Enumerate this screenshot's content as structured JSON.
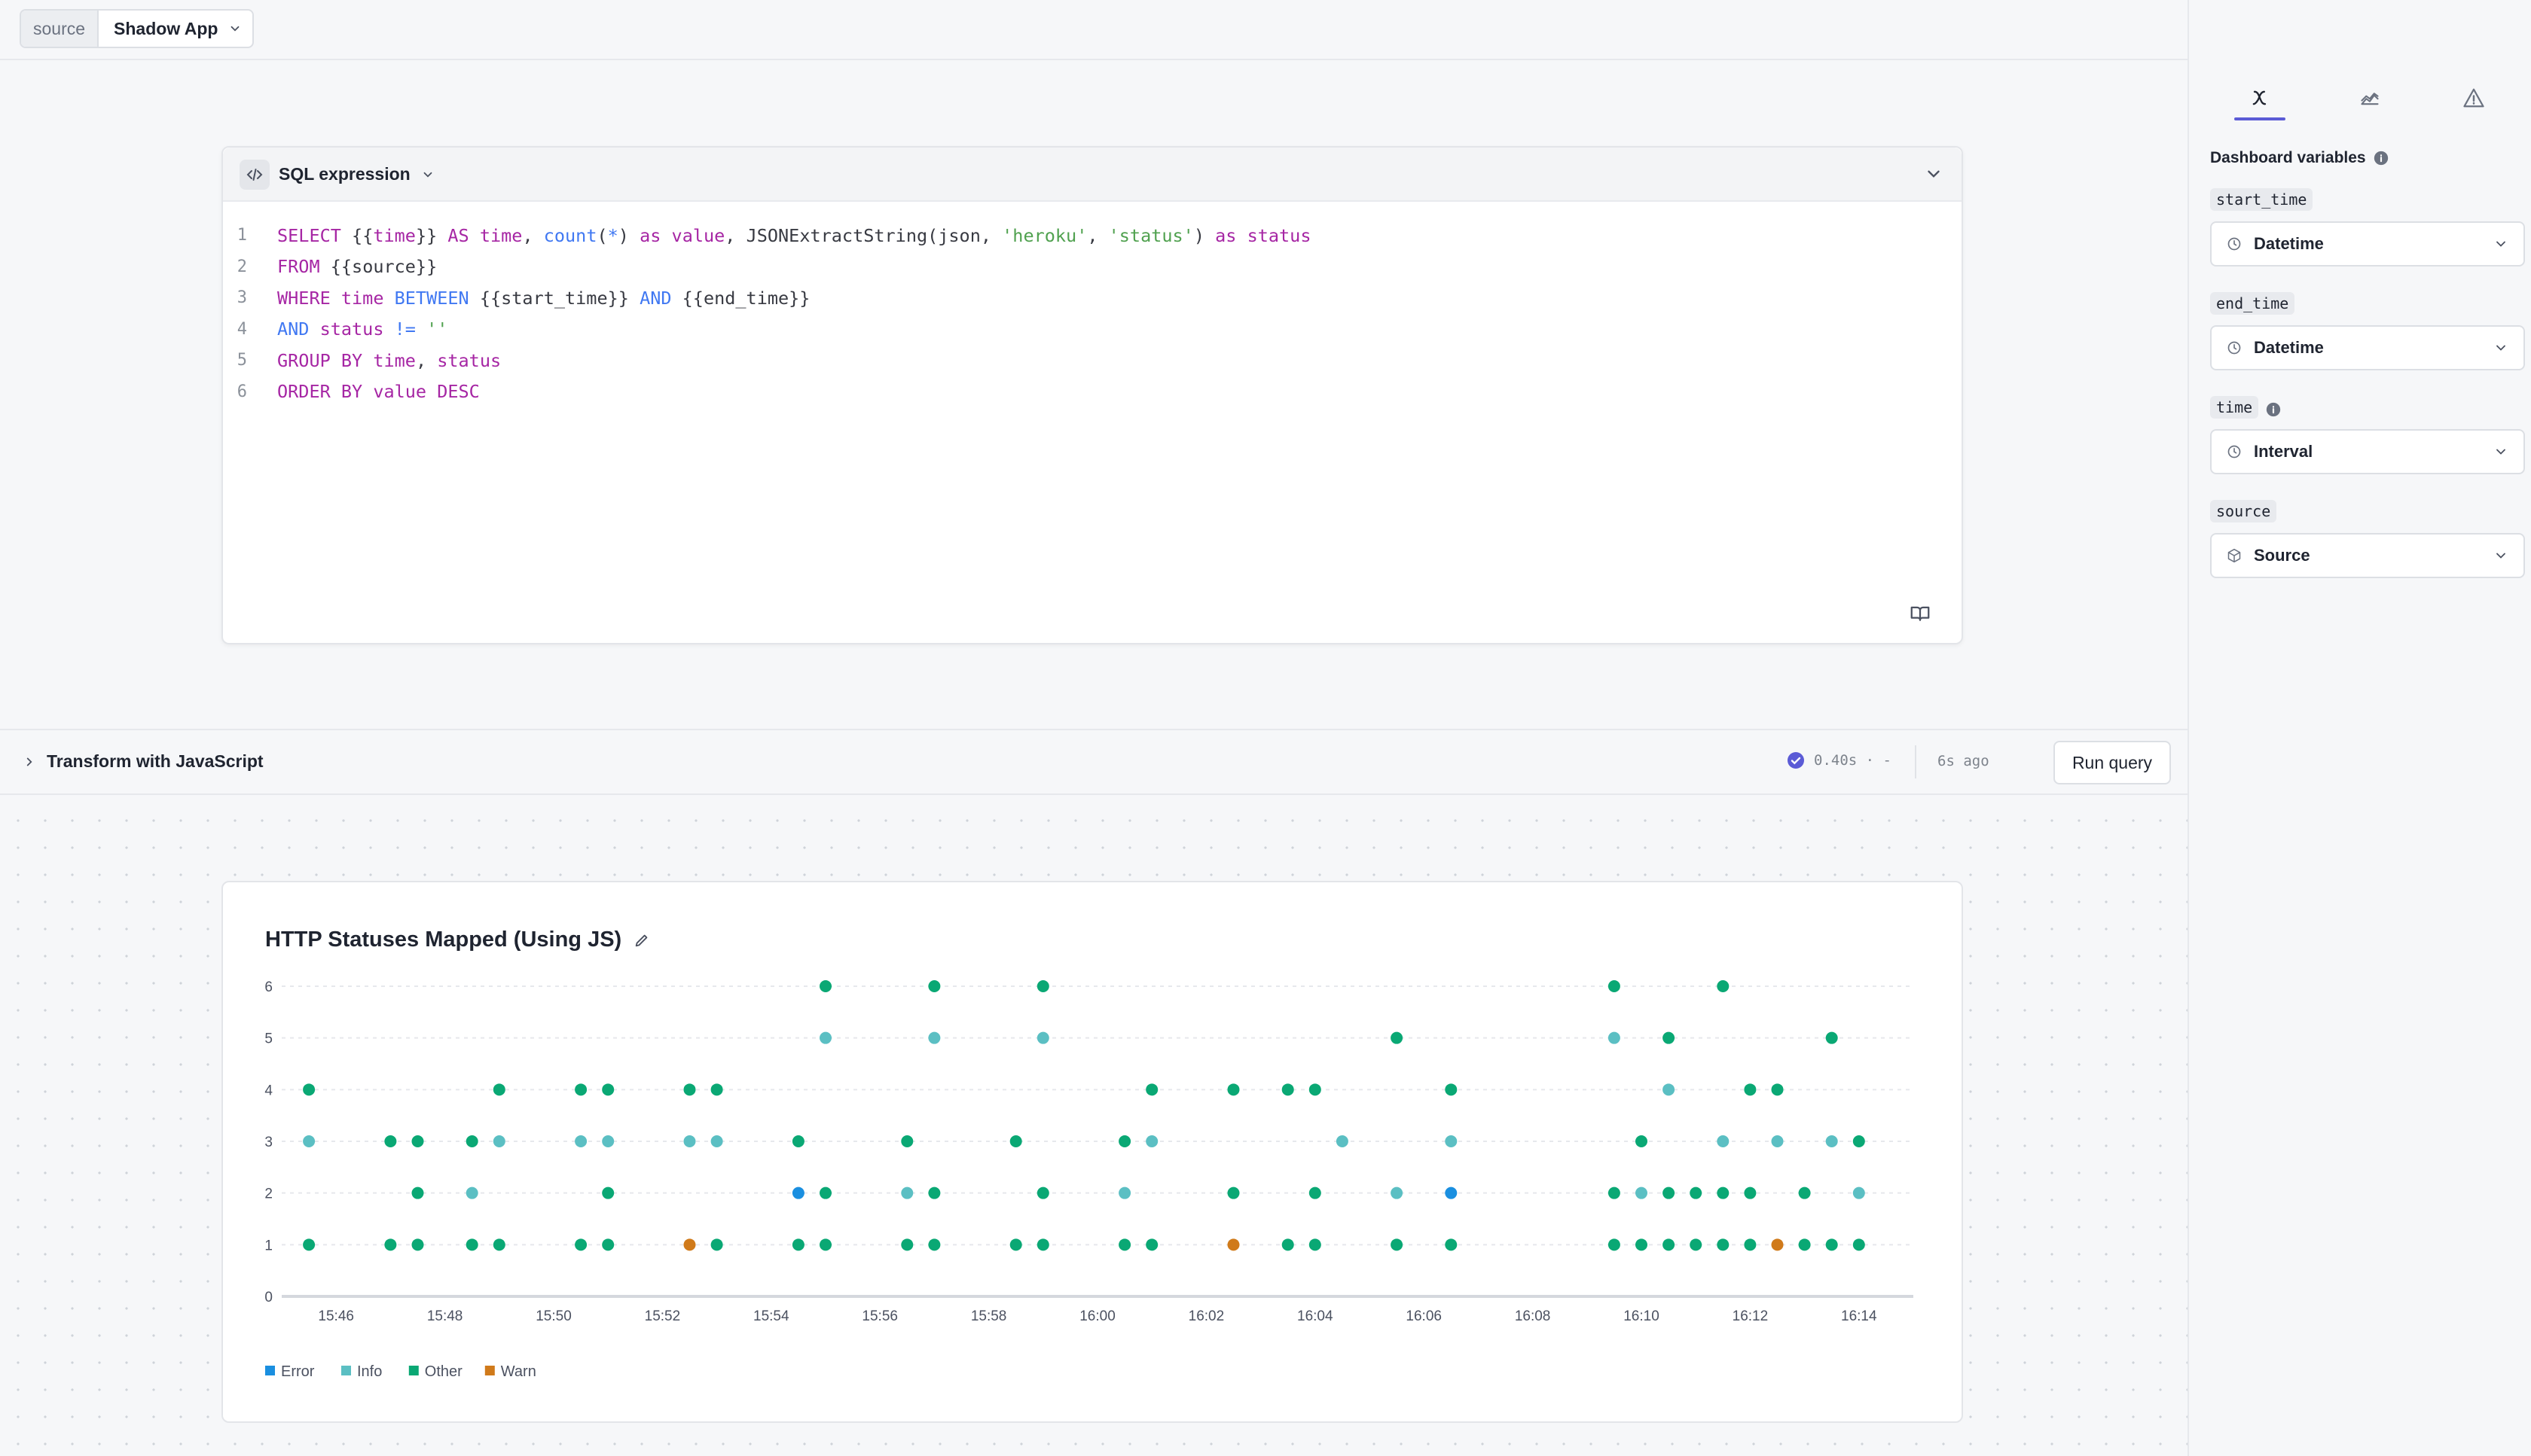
{
  "topbar": {
    "source_label": "source",
    "source_value": "Shadow App"
  },
  "sql": {
    "title": "SQL expression",
    "lines": [
      [
        {
          "t": "SELECT ",
          "c": "kw"
        },
        {
          "t": "{{",
          "c": "pl"
        },
        {
          "t": "time",
          "c": "kw"
        },
        {
          "t": "}} ",
          "c": "pl"
        },
        {
          "t": "AS ",
          "c": "kw"
        },
        {
          "t": "time",
          "c": "kw"
        },
        {
          "t": ", ",
          "c": "pl"
        },
        {
          "t": "count",
          "c": "fn"
        },
        {
          "t": "(",
          "c": "pl"
        },
        {
          "t": "*",
          "c": "fn"
        },
        {
          "t": ") ",
          "c": "pl"
        },
        {
          "t": "as ",
          "c": "kw"
        },
        {
          "t": "value",
          "c": "kw"
        },
        {
          "t": ", JSONExtractString(json, ",
          "c": "pl"
        },
        {
          "t": "'heroku'",
          "c": "str"
        },
        {
          "t": ", ",
          "c": "pl"
        },
        {
          "t": "'status'",
          "c": "str"
        },
        {
          "t": ") ",
          "c": "pl"
        },
        {
          "t": "as ",
          "c": "kw"
        },
        {
          "t": "status",
          "c": "kw"
        }
      ],
      [
        {
          "t": "FROM ",
          "c": "kw"
        },
        {
          "t": "{{source}}",
          "c": "pl"
        }
      ],
      [
        {
          "t": "WHERE ",
          "c": "kw"
        },
        {
          "t": "time ",
          "c": "kw"
        },
        {
          "t": "BETWEEN ",
          "c": "fn"
        },
        {
          "t": "{{start_time}} ",
          "c": "pl"
        },
        {
          "t": "AND ",
          "c": "fn"
        },
        {
          "t": "{{end_time}}",
          "c": "pl"
        }
      ],
      [
        {
          "t": "AND ",
          "c": "fn"
        },
        {
          "t": "status ",
          "c": "kw"
        },
        {
          "t": "!= ",
          "c": "fn"
        },
        {
          "t": "''",
          "c": "str"
        }
      ],
      [
        {
          "t": "GROUP BY ",
          "c": "kw"
        },
        {
          "t": "time",
          "c": "kw"
        },
        {
          "t": ", ",
          "c": "pl"
        },
        {
          "t": "status",
          "c": "kw"
        }
      ],
      [
        {
          "t": "ORDER BY ",
          "c": "kw"
        },
        {
          "t": "value ",
          "c": "kw"
        },
        {
          "t": "DESC",
          "c": "kw"
        }
      ]
    ]
  },
  "transform": {
    "label": "Transform with JavaScript"
  },
  "status": {
    "duration": "0.40s · -",
    "ago": "6s ago",
    "run_label": "Run query"
  },
  "right_panel": {
    "title": "Dashboard variables",
    "variables": [
      {
        "name": "start_time",
        "type": "Datetime",
        "icon": "clock-icon",
        "info": false
      },
      {
        "name": "end_time",
        "type": "Datetime",
        "icon": "clock-icon",
        "info": false
      },
      {
        "name": "time",
        "type": "Interval",
        "icon": "clock-icon",
        "info": true
      },
      {
        "name": "source",
        "type": "Source",
        "icon": "cube-icon",
        "info": false
      }
    ]
  },
  "colors": {
    "Error": "#1a8fe0",
    "Info": "#5bbfc3",
    "Other": "#0aa874",
    "Warn": "#d07a1a"
  },
  "chart_data": {
    "type": "scatter",
    "title": "HTTP Statuses Mapped (Using JS)",
    "y_ticks": [
      "0",
      "1",
      "2",
      "3",
      "4",
      "5",
      "6"
    ],
    "ylim": [
      0,
      6
    ],
    "x_ticks": [
      "15:46",
      "15:48",
      "15:50",
      "15:52",
      "15:54",
      "15:56",
      "15:58",
      "16:00",
      "16:02",
      "16:04",
      "16:06",
      "16:08",
      "16:10",
      "16:12",
      "16:14"
    ],
    "xlim": [
      "15:45:00",
      "16:15:00"
    ],
    "legend": [
      "Error",
      "Info",
      "Other",
      "Warn"
    ],
    "legend_position": "bottom-left",
    "grid": true,
    "series": [
      {
        "name": "Error",
        "points": [
          [
            "15:54:30",
            2
          ],
          [
            "16:06:30",
            2
          ]
        ]
      },
      {
        "name": "Warn",
        "points": [
          [
            "15:52:30",
            1
          ],
          [
            "16:02:30",
            1
          ],
          [
            "16:12:30",
            1
          ]
        ]
      },
      {
        "name": "Info",
        "points": [
          [
            "15:45:30",
            3
          ],
          [
            "15:48:30",
            2
          ],
          [
            "15:49:00",
            3
          ],
          [
            "15:50:30",
            3
          ],
          [
            "15:51:00",
            3
          ],
          [
            "15:52:30",
            3
          ],
          [
            "15:53:00",
            3
          ],
          [
            "15:55:00",
            5
          ],
          [
            "15:56:30",
            2
          ],
          [
            "15:57:00",
            5
          ],
          [
            "15:59:00",
            5
          ],
          [
            "16:00:30",
            2
          ],
          [
            "16:01:00",
            3
          ],
          [
            "16:04:30",
            3
          ],
          [
            "16:05:30",
            2
          ],
          [
            "16:06:30",
            3
          ],
          [
            "16:09:30",
            5
          ],
          [
            "16:10:00",
            2
          ],
          [
            "16:10:30",
            4
          ],
          [
            "16:11:30",
            3
          ],
          [
            "16:12:30",
            3
          ],
          [
            "16:13:30",
            3
          ],
          [
            "16:14:00",
            2
          ]
        ]
      },
      {
        "name": "Other",
        "points": [
          [
            "15:45:30",
            4
          ],
          [
            "15:45:30",
            1
          ],
          [
            "15:47:00",
            3
          ],
          [
            "15:47:00",
            1
          ],
          [
            "15:47:30",
            3
          ],
          [
            "15:47:30",
            2
          ],
          [
            "15:47:30",
            1
          ],
          [
            "15:48:30",
            3
          ],
          [
            "15:48:30",
            1
          ],
          [
            "15:49:00",
            4
          ],
          [
            "15:49:00",
            1
          ],
          [
            "15:50:30",
            4
          ],
          [
            "15:50:30",
            1
          ],
          [
            "15:51:00",
            4
          ],
          [
            "15:51:00",
            2
          ],
          [
            "15:51:00",
            1
          ],
          [
            "15:52:30",
            4
          ],
          [
            "15:53:00",
            4
          ],
          [
            "15:53:00",
            1
          ],
          [
            "15:54:30",
            3
          ],
          [
            "15:54:30",
            1
          ],
          [
            "15:55:00",
            6
          ],
          [
            "15:55:00",
            2
          ],
          [
            "15:55:00",
            1
          ],
          [
            "15:56:30",
            3
          ],
          [
            "15:56:30",
            1
          ],
          [
            "15:57:00",
            6
          ],
          [
            "15:57:00",
            2
          ],
          [
            "15:57:00",
            1
          ],
          [
            "15:58:30",
            3
          ],
          [
            "15:58:30",
            1
          ],
          [
            "15:59:00",
            6
          ],
          [
            "15:59:00",
            2
          ],
          [
            "15:59:00",
            1
          ],
          [
            "16:00:30",
            3
          ],
          [
            "16:00:30",
            1
          ],
          [
            "16:01:00",
            4
          ],
          [
            "16:01:00",
            1
          ],
          [
            "16:02:30",
            4
          ],
          [
            "16:02:30",
            2
          ],
          [
            "16:03:30",
            4
          ],
          [
            "16:03:30",
            1
          ],
          [
            "16:04:00",
            4
          ],
          [
            "16:04:00",
            2
          ],
          [
            "16:04:00",
            1
          ],
          [
            "16:05:30",
            5
          ],
          [
            "16:05:30",
            1
          ],
          [
            "16:06:30",
            4
          ],
          [
            "16:06:30",
            1
          ],
          [
            "16:09:30",
            6
          ],
          [
            "16:09:30",
            2
          ],
          [
            "16:09:30",
            1
          ],
          [
            "16:10:00",
            3
          ],
          [
            "16:10:00",
            1
          ],
          [
            "16:10:30",
            5
          ],
          [
            "16:10:30",
            2
          ],
          [
            "16:10:30",
            1
          ],
          [
            "16:11:00",
            2
          ],
          [
            "16:11:00",
            1
          ],
          [
            "16:11:30",
            6
          ],
          [
            "16:11:30",
            2
          ],
          [
            "16:11:30",
            1
          ],
          [
            "16:12:00",
            4
          ],
          [
            "16:12:00",
            2
          ],
          [
            "16:12:00",
            1
          ],
          [
            "16:12:30",
            4
          ],
          [
            "16:13:00",
            2
          ],
          [
            "16:13:00",
            1
          ],
          [
            "16:13:30",
            5
          ],
          [
            "16:13:30",
            1
          ],
          [
            "16:14:00",
            3
          ],
          [
            "16:14:00",
            1
          ]
        ]
      }
    ]
  }
}
